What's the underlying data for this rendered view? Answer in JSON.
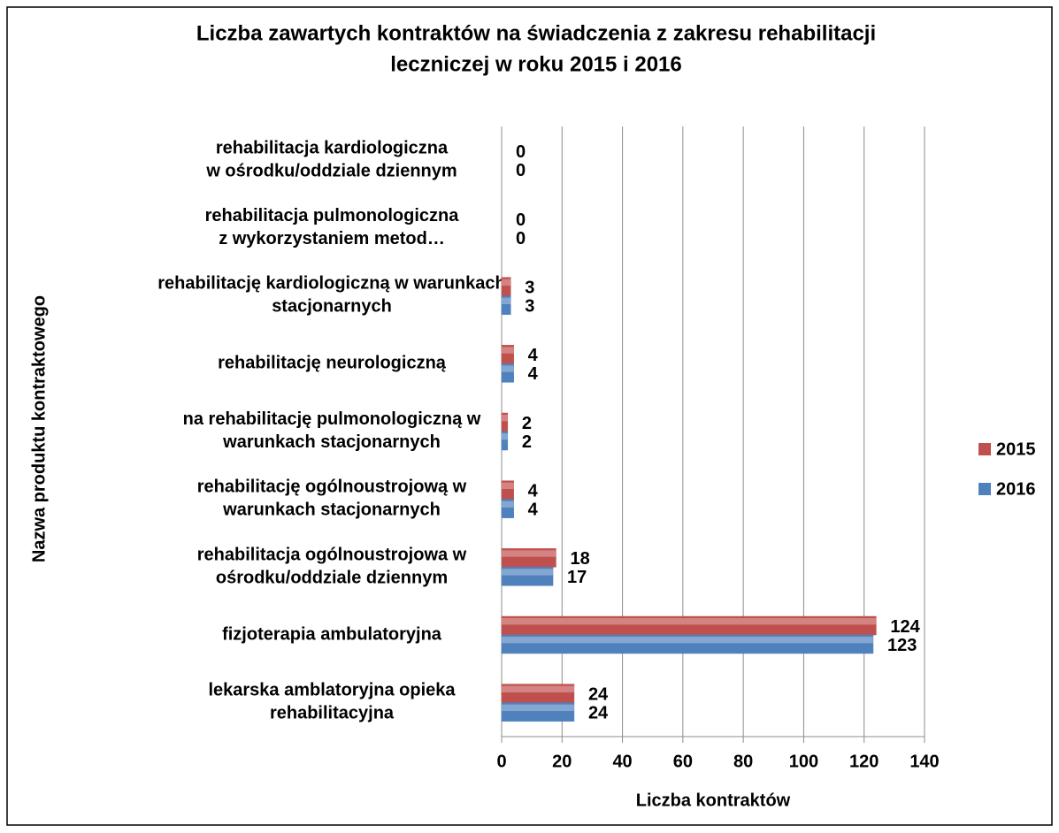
{
  "chart_data": {
    "type": "bar",
    "orientation": "horizontal",
    "title": "Liczba zawartych kontraktów na świadczenia z zakresu rehabilitacji\nleczniczej w roku 2015 i 2016",
    "x_label": "Liczba kontraktów",
    "y_label": "Nazwa produktu kontraktowego",
    "categories": [
      "rehabilitacja kardiologiczna\nw ośrodku/oddziale dziennym",
      "rehabilitacja pulmonologiczna\nz wykorzystaniem metod…",
      "rehabilitację kardiologiczną w warunkach\nstacjonarnych",
      "rehabilitację neurologiczną",
      "na rehabilitację pulmonologiczną w\nwarunkach stacjonarnych",
      "rehabilitację ogólnoustrojową w\nwarunkach stacjonarnych",
      "rehabilitacja ogólnoustrojowa w\nośrodku/oddziale dziennym",
      "fizjoterapia ambulatoryjna",
      "lekarska amblatoryjna opieka\nrehabilitacyjna"
    ],
    "series": [
      {
        "name": "2015",
        "color": "#c0504d",
        "values": [
          0,
          0,
          3,
          4,
          2,
          4,
          18,
          124,
          24
        ]
      },
      {
        "name": "2016",
        "color": "#4f81bd",
        "values": [
          0,
          0,
          3,
          4,
          2,
          4,
          17,
          123,
          24
        ]
      }
    ],
    "xlim": [
      0,
      140
    ],
    "xticks": [
      0,
      20,
      40,
      60,
      80,
      100,
      120,
      140
    ],
    "grid": true,
    "legend": "right"
  }
}
